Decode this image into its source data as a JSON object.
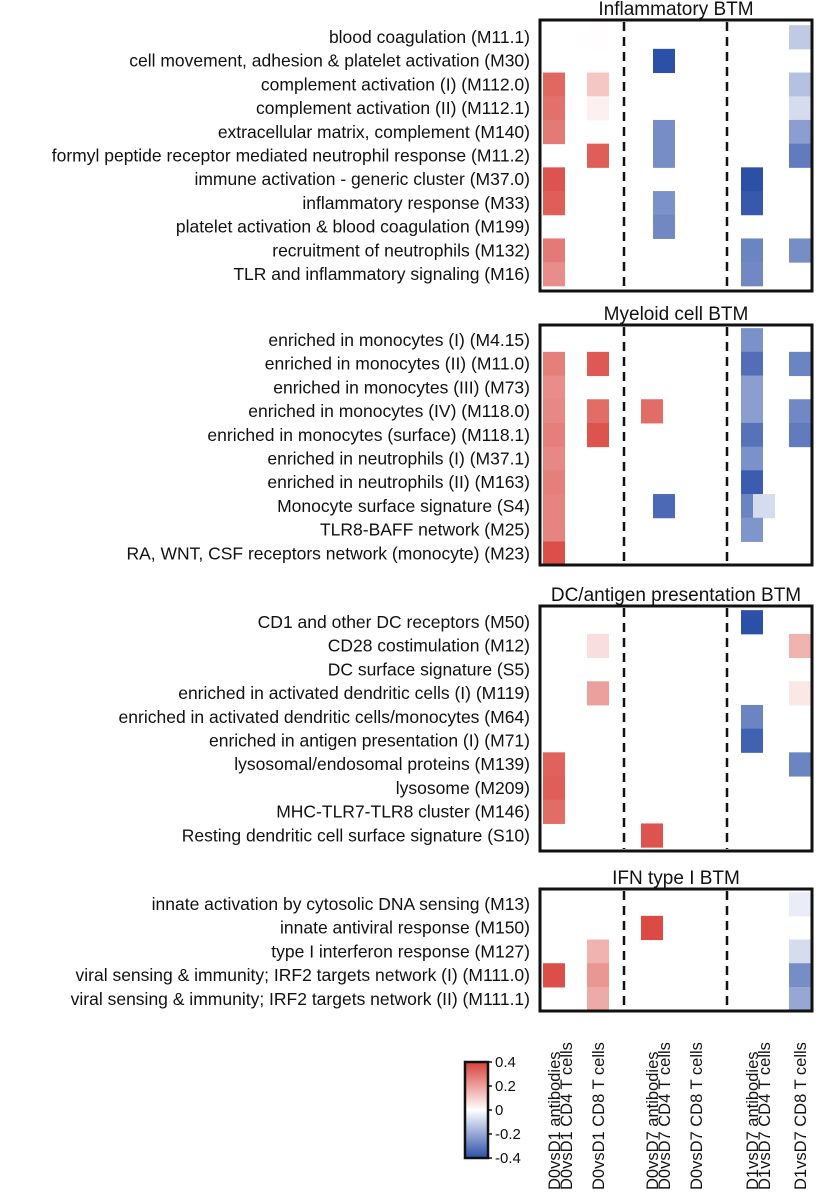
{
  "chart_data": {
    "type": "heatmap",
    "colorscale": {
      "min": -0.4,
      "max": 0.4,
      "negative_color": "#2c4fa8",
      "positive_color": "#d9413a",
      "zero_color": "#ffffff"
    },
    "colorbar_ticks": [
      {
        "value": 0.4,
        "label": "0.4"
      },
      {
        "value": 0.2,
        "label": "0.2"
      },
      {
        "value": 0,
        "label": "0"
      },
      {
        "value": -0.2,
        "label": "-0.2"
      },
      {
        "value": -0.4,
        "label": "-0.4"
      }
    ],
    "columns": [
      "D0vsD1 antibodies",
      "D0vsD1 CD4 T cells",
      "D0vsD1 CD8 T cells",
      "D0vsD7 antibodies",
      "D0vsD7 CD4 T cells",
      "D0vsD7 CD8 T cells",
      "D1vsD7 antibodies",
      "D1vsD7 CD4 T cells",
      "D1vsD7 CD8 T cells"
    ],
    "panels": [
      {
        "title": "Inflammatory BTM",
        "rows": [
          {
            "label": "blood coagulation (M11.1)",
            "values": [
              null,
              null,
              0.005,
              null,
              null,
              null,
              null,
              null,
              -0.12
            ]
          },
          {
            "label": "cell movement, adhesion & platelet activation (M30)",
            "values": [
              null,
              null,
              null,
              null,
              -0.4,
              null,
              null,
              null,
              null
            ]
          },
          {
            "label": "complement activation (I) (M112.0)",
            "values": [
              0.32,
              null,
              0.12,
              null,
              null,
              null,
              null,
              null,
              -0.14
            ]
          },
          {
            "label": "complement activation (II) (M112.1)",
            "values": [
              0.3,
              null,
              0.03,
              null,
              null,
              null,
              null,
              null,
              -0.08
            ]
          },
          {
            "label": "extracellular matrix, complement (M140)",
            "values": [
              0.28,
              null,
              null,
              null,
              -0.26,
              null,
              null,
              null,
              -0.22
            ]
          },
          {
            "label": "formyl peptide receptor mediated neutrophil response (M11.2)",
            "values": [
              null,
              null,
              0.34,
              null,
              -0.26,
              null,
              null,
              null,
              -0.3
            ]
          },
          {
            "label": "immune activation - generic cluster (M37.0)",
            "values": [
              0.36,
              null,
              null,
              null,
              null,
              null,
              -0.4,
              null,
              null
            ]
          },
          {
            "label": "inflammatory response (M33)",
            "values": [
              0.34,
              null,
              null,
              null,
              -0.25,
              null,
              -0.38,
              null,
              null
            ]
          },
          {
            "label": "platelet activation & blood coagulation (M199)",
            "values": [
              null,
              null,
              null,
              null,
              -0.27,
              null,
              null,
              null,
              null
            ]
          },
          {
            "label": "recruitment of neutrophils (M132)",
            "values": [
              0.28,
              null,
              null,
              null,
              null,
              null,
              -0.28,
              null,
              -0.26
            ]
          },
          {
            "label": "TLR and inflammatory signaling (M16)",
            "values": [
              0.24,
              null,
              null,
              null,
              null,
              null,
              -0.27,
              null,
              null
            ]
          }
        ]
      },
      {
        "title": "Myeloid cell BTM",
        "rows": [
          {
            "label": "enriched in monocytes (I) (M4.15)",
            "values": [
              null,
              null,
              null,
              null,
              null,
              null,
              -0.25,
              null,
              null
            ]
          },
          {
            "label": "enriched in monocytes (II) (M11.0)",
            "values": [
              0.27,
              null,
              0.35,
              null,
              null,
              null,
              -0.33,
              null,
              -0.28
            ]
          },
          {
            "label": "enriched in monocytes (III) (M73)",
            "values": [
              0.24,
              null,
              null,
              null,
              null,
              null,
              -0.22,
              null,
              null
            ]
          },
          {
            "label": "enriched in monocytes (IV) (M118.0)",
            "values": [
              0.25,
              null,
              0.31,
              0.31,
              null,
              null,
              -0.22,
              null,
              -0.27
            ]
          },
          {
            "label": "enriched in monocytes (surface) (M118.1)",
            "values": [
              0.27,
              null,
              0.36,
              null,
              null,
              null,
              -0.32,
              null,
              -0.3
            ]
          },
          {
            "label": "enriched in neutrophils (I) (M37.1)",
            "values": [
              0.25,
              null,
              null,
              null,
              null,
              null,
              -0.25,
              null,
              null
            ]
          },
          {
            "label": "enriched in neutrophils (II) (M163)",
            "values": [
              0.27,
              null,
              null,
              null,
              null,
              null,
              -0.37,
              null,
              null
            ]
          },
          {
            "label": "Monocyte surface signature (S4)",
            "values": [
              0.26,
              null,
              null,
              null,
              -0.34,
              null,
              -0.28,
              -0.08,
              null
            ]
          },
          {
            "label": "TLR8-BAFF network (M25)",
            "values": [
              0.26,
              null,
              null,
              null,
              null,
              null,
              -0.24,
              null,
              null
            ]
          },
          {
            "label": "RA, WNT, CSF receptors network (monocyte) (M23)",
            "values": [
              0.37,
              null,
              null,
              null,
              null,
              null,
              null,
              null,
              null
            ]
          }
        ]
      },
      {
        "title": "DC/antigen presentation BTM",
        "rows": [
          {
            "label": "CD1 and other DC receptors (M50)",
            "values": [
              null,
              null,
              null,
              null,
              null,
              null,
              -0.4,
              null,
              null
            ]
          },
          {
            "label": "CD28 costimulation (M12)",
            "values": [
              null,
              null,
              0.07,
              null,
              null,
              null,
              null,
              null,
              0.16
            ]
          },
          {
            "label": "DC surface signature (S5)",
            "values": [
              null,
              null,
              null,
              null,
              null,
              null,
              null,
              null,
              null
            ]
          },
          {
            "label": "enriched in activated dendritic cells (I) (M119)",
            "values": [
              null,
              null,
              0.2,
              null,
              null,
              null,
              null,
              null,
              0.05
            ]
          },
          {
            "label": "enriched in activated dendritic cells/monocytes (M64)",
            "values": [
              null,
              null,
              null,
              null,
              null,
              null,
              -0.28,
              null,
              null
            ]
          },
          {
            "label": "enriched in antigen presentation (I) (M71)",
            "values": [
              null,
              null,
              null,
              null,
              null,
              null,
              -0.36,
              null,
              null
            ]
          },
          {
            "label": "lysosomal/endosomal proteins (M139)",
            "values": [
              0.33,
              null,
              null,
              null,
              null,
              null,
              null,
              null,
              -0.28
            ]
          },
          {
            "label": "lysosome (M209)",
            "values": [
              0.34,
              null,
              null,
              null,
              null,
              null,
              null,
              null,
              null
            ]
          },
          {
            "label": "MHC-TLR7-TLR8 cluster (M146)",
            "values": [
              0.31,
              null,
              null,
              null,
              null,
              null,
              null,
              null,
              null
            ]
          },
          {
            "label": "Resting dendritic cell surface signature (S10)",
            "values": [
              null,
              null,
              null,
              0.36,
              null,
              null,
              null,
              null,
              null
            ]
          }
        ]
      },
      {
        "title": "IFN type I BTM",
        "rows": [
          {
            "label": "innate activation by cytosolic DNA sensing (M13)",
            "values": [
              null,
              null,
              null,
              null,
              null,
              null,
              null,
              null,
              -0.04
            ]
          },
          {
            "label": "innate antiviral response (M150)",
            "values": [
              null,
              null,
              null,
              0.38,
              null,
              null,
              null,
              null,
              null
            ]
          },
          {
            "label": "type I interferon response (M127)",
            "values": [
              null,
              null,
              0.16,
              null,
              null,
              null,
              null,
              null,
              -0.08
            ]
          },
          {
            "label": "viral sensing & immunity; IRF2 targets network (I) (M111.0)",
            "values": [
              0.37,
              null,
              0.22,
              null,
              null,
              null,
              null,
              null,
              -0.26
            ]
          },
          {
            "label": "viral sensing & immunity; IRF2 targets network (II) (M111.1)",
            "values": [
              null,
              null,
              0.18,
              null,
              null,
              null,
              null,
              null,
              -0.2
            ]
          }
        ]
      }
    ]
  }
}
